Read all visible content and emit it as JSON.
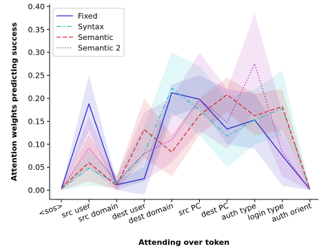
{
  "chart_data": {
    "type": "line",
    "title": "",
    "xlabel": "Attending over token",
    "ylabel": "Attention weights predicting success",
    "categories": [
      "<sos>",
      "src user",
      "src domain",
      "dest user",
      "dest domain",
      "src PC",
      "dest PC",
      "auth type",
      "login type",
      "auth orient"
    ],
    "ylim": [
      -0.02,
      0.405
    ],
    "yticks": [
      0.0,
      0.05,
      0.1,
      0.15,
      0.2,
      0.25,
      0.3,
      0.35,
      0.4
    ],
    "ytick_labels": [
      "0.00",
      "0.05",
      "0.10",
      "0.15",
      "0.20",
      "0.25",
      "0.30",
      "0.35",
      "0.40"
    ],
    "grid": false,
    "legend_position": "top-left",
    "series": [
      {
        "name": "Fixed",
        "color": "#2b2bcc",
        "dash": "solid",
        "values": [
          0.003,
          0.188,
          0.012,
          0.025,
          0.212,
          0.198,
          0.133,
          0.153,
          0.075,
          0.002
        ],
        "lower": [
          0.0,
          0.13,
          0.0,
          -0.01,
          0.16,
          0.18,
          0.1,
          0.09,
          0.01,
          0.0
        ],
        "upper": [
          0.005,
          0.25,
          0.02,
          0.05,
          0.23,
          0.25,
          0.22,
          0.21,
          0.12,
          0.005
        ]
      },
      {
        "name": "Syntax",
        "color": "#22c4c4",
        "dash": "dashdot",
        "values": [
          0.003,
          0.048,
          0.015,
          0.08,
          0.222,
          0.175,
          0.118,
          0.153,
          0.178,
          0.002
        ],
        "lower": [
          0.0,
          0.01,
          0.005,
          0.02,
          0.17,
          0.12,
          0.05,
          0.1,
          0.12,
          0.0
        ],
        "upper": [
          0.005,
          0.085,
          0.03,
          0.14,
          0.3,
          0.27,
          0.2,
          0.22,
          0.26,
          0.005
        ]
      },
      {
        "name": "Semantic",
        "color": "#d62728",
        "dash": "dashed",
        "values": [
          0.005,
          0.06,
          0.01,
          0.132,
          0.083,
          0.163,
          0.208,
          0.162,
          0.182,
          0.002
        ],
        "lower": [
          0.0,
          0.02,
          0.0,
          0.07,
          0.03,
          0.12,
          0.17,
          0.12,
          0.13,
          0.0
        ],
        "upper": [
          0.01,
          0.12,
          0.03,
          0.2,
          0.12,
          0.2,
          0.245,
          0.21,
          0.22,
          0.005
        ]
      },
      {
        "name": "Semantic 2",
        "color": "#b22fb2",
        "dash": "dotted",
        "values": [
          0.003,
          0.092,
          0.018,
          0.08,
          0.11,
          0.198,
          0.148,
          0.275,
          0.082,
          0.002
        ],
        "lower": [
          0.0,
          0.05,
          0.0,
          0.02,
          0.06,
          0.13,
          0.09,
          0.17,
          0.03,
          0.0
        ],
        "upper": [
          0.005,
          0.16,
          0.03,
          0.17,
          0.2,
          0.3,
          0.22,
          0.385,
          0.17,
          0.005
        ]
      }
    ]
  }
}
